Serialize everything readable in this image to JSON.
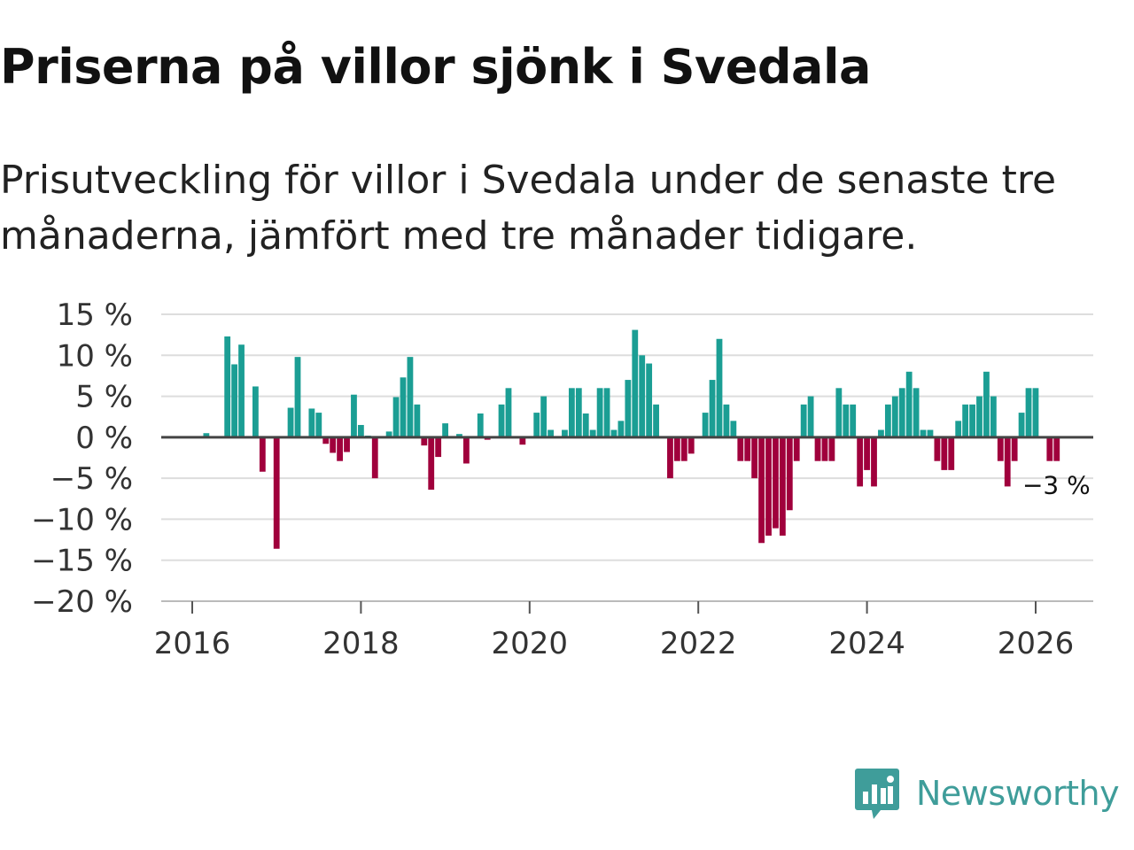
{
  "title": "Priserna på villor sjönk i Svedala",
  "subtitle": "Prisutveckling för villor i Svedala under de senaste tre månaderna, jämfört med tre månader tidigare.",
  "brand": {
    "name": "Newsworthy",
    "icon": "newsworthy-logo-icon"
  },
  "colors": {
    "positive": "#1b9e94",
    "negative": "#a0003c",
    "zero_line": "#444444",
    "grid": "#dddddd"
  },
  "chart_data": {
    "type": "bar",
    "title": "Priserna på villor sjönk i Svedala",
    "xlabel": "",
    "ylabel": "",
    "ylim": [
      -20,
      15
    ],
    "yticks": [
      15,
      10,
      5,
      0,
      -5,
      -10,
      -15,
      -20
    ],
    "ytick_labels": [
      "15 %",
      "10 %",
      "5 %",
      "0 %",
      "−5 %",
      "−10 %",
      "−15 %",
      "−20 %"
    ],
    "xticks": [
      2016,
      2018,
      2020,
      2022,
      2024,
      2026
    ],
    "xtick_labels": [
      "2016",
      "2018",
      "2020",
      "2022",
      "2024",
      "2026"
    ],
    "x_start": 2016.0,
    "x_step": 0.08333,
    "grid": true,
    "end_label": "−3 %",
    "values": [
      null,
      null,
      0.5,
      null,
      null,
      12.3,
      8.9,
      11.3,
      null,
      6.2,
      -4.2,
      null,
      -13.6,
      null,
      3.6,
      9.8,
      null,
      3.5,
      3.0,
      -0.8,
      -1.9,
      -2.9,
      -1.8,
      5.2,
      1.5,
      0.2,
      -5.0,
      null,
      0.7,
      4.9,
      7.3,
      9.8,
      4.0,
      -1.0,
      -6.4,
      -2.4,
      1.7,
      null,
      0.4,
      -3.2,
      null,
      2.9,
      -0.3,
      null,
      4.0,
      6.0,
      null,
      -0.9,
      null,
      3.0,
      5.0,
      0.9,
      null,
      0.9,
      6.0,
      6.0,
      2.9,
      0.9,
      6.0,
      6.0,
      0.9,
      2.0,
      7.0,
      13.1,
      10.0,
      9.0,
      4.0,
      null,
      -5.0,
      -2.9,
      -2.9,
      -2.0,
      null,
      3.0,
      7.0,
      12.0,
      4.0,
      2.0,
      -2.9,
      -2.9,
      -5.0,
      -12.9,
      -12.0,
      -11.1,
      -12.0,
      -8.9,
      -2.9,
      4.0,
      5.0,
      -2.9,
      -2.9,
      -2.9,
      6.0,
      4.0,
      4.0,
      -6.0,
      -4.0,
      -6.0,
      0.9,
      4.0,
      5.0,
      6.0,
      8.0,
      6.0,
      0.9,
      0.9,
      -2.9,
      -4.0,
      -4.0,
      2.0,
      4.0,
      4.0,
      5.0,
      8.0,
      5.0,
      -2.9,
      -6.0,
      -2.9,
      3.0,
      6.0,
      6.0,
      null,
      -2.9,
      -2.9
    ]
  }
}
